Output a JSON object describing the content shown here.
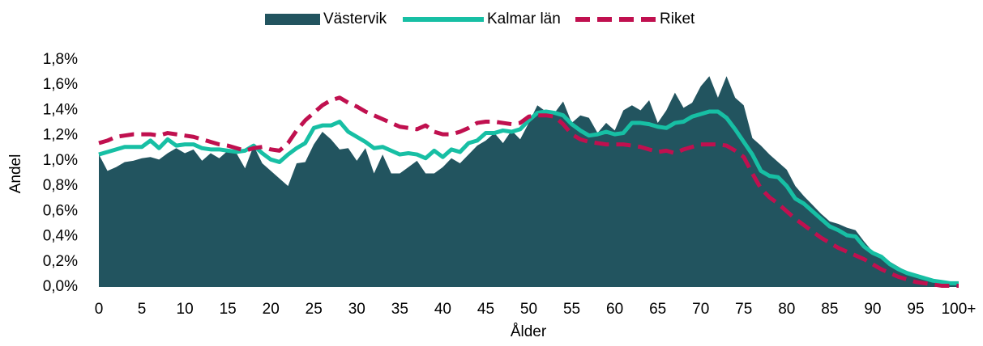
{
  "chart_data": {
    "type": "area",
    "x_label": "Ålder",
    "y_label": "Andel",
    "categories": [
      "0",
      null,
      null,
      null,
      null,
      "5",
      null,
      null,
      null,
      null,
      "10",
      null,
      null,
      null,
      null,
      "15",
      null,
      null,
      null,
      null,
      "20",
      null,
      null,
      null,
      null,
      "25",
      null,
      null,
      null,
      null,
      "30",
      null,
      null,
      null,
      null,
      "35",
      null,
      null,
      null,
      null,
      "40",
      null,
      null,
      null,
      null,
      "45",
      null,
      null,
      null,
      null,
      "50",
      null,
      null,
      null,
      null,
      "55",
      null,
      null,
      null,
      null,
      "60",
      null,
      null,
      null,
      null,
      "65",
      null,
      null,
      null,
      null,
      "70",
      null,
      null,
      null,
      null,
      "75",
      null,
      null,
      null,
      null,
      "80",
      null,
      null,
      null,
      null,
      "85",
      null,
      null,
      null,
      null,
      "90",
      null,
      null,
      null,
      null,
      "95",
      null,
      null,
      null,
      null,
      "100+"
    ],
    "ylim": [
      0,
      1.8
    ],
    "yticks": [
      {
        "value": 0,
        "label": "0,0%"
      },
      {
        "value": 0.2,
        "label": "0,2%"
      },
      {
        "value": 0.4,
        "label": "0,4%"
      },
      {
        "value": 0.6,
        "label": "0,6%"
      },
      {
        "value": 0.8,
        "label": "0,8%"
      },
      {
        "value": 1.0,
        "label": "1,0%"
      },
      {
        "value": 1.2,
        "label": "1,2%"
      },
      {
        "value": 1.4,
        "label": "1,4%"
      },
      {
        "value": 1.6,
        "label": "1,6%"
      },
      {
        "value": 1.8,
        "label": "1,8%"
      }
    ],
    "grid": false,
    "legend": "top",
    "series": [
      {
        "name": "Västervik",
        "style": "area",
        "color": "#22545f",
        "values": [
          1.05,
          0.92,
          0.95,
          0.99,
          1.0,
          1.02,
          1.03,
          1.01,
          1.06,
          1.1,
          1.06,
          1.09,
          1.0,
          1.06,
          1.02,
          1.08,
          1.06,
          0.94,
          1.12,
          0.98,
          0.92,
          0.86,
          0.8,
          0.98,
          0.99,
          1.13,
          1.23,
          1.17,
          1.09,
          1.1,
          1.0,
          1.1,
          0.9,
          1.05,
          0.9,
          0.9,
          0.95,
          1.0,
          0.9,
          0.9,
          0.95,
          1.02,
          0.98,
          1.05,
          1.12,
          1.16,
          1.22,
          1.14,
          1.24,
          1.17,
          1.3,
          1.44,
          1.39,
          1.38,
          1.47,
          1.3,
          1.36,
          1.34,
          1.22,
          1.3,
          1.24,
          1.4,
          1.44,
          1.4,
          1.48,
          1.3,
          1.4,
          1.54,
          1.42,
          1.46,
          1.59,
          1.67,
          1.5,
          1.67,
          1.5,
          1.44,
          1.18,
          1.12,
          1.05,
          0.99,
          0.93,
          0.8,
          0.72,
          0.65,
          0.58,
          0.52,
          0.5,
          0.47,
          0.45,
          0.36,
          0.28,
          0.25,
          0.2,
          0.16,
          0.12,
          0.09,
          0.06,
          0.04,
          0.03,
          0.02,
          0.02
        ]
      },
      {
        "name": "Kalmar län",
        "style": "line",
        "color": "#17bfa4",
        "values": [
          1.05,
          1.07,
          1.09,
          1.11,
          1.11,
          1.11,
          1.16,
          1.1,
          1.17,
          1.12,
          1.13,
          1.13,
          1.1,
          1.09,
          1.09,
          1.08,
          1.07,
          1.08,
          1.12,
          1.06,
          1.01,
          0.99,
          1.05,
          1.1,
          1.14,
          1.26,
          1.28,
          1.28,
          1.31,
          1.23,
          1.19,
          1.15,
          1.1,
          1.11,
          1.08,
          1.05,
          1.06,
          1.05,
          1.02,
          1.08,
          1.03,
          1.09,
          1.07,
          1.14,
          1.16,
          1.22,
          1.22,
          1.24,
          1.23,
          1.25,
          1.32,
          1.38,
          1.39,
          1.38,
          1.36,
          1.29,
          1.24,
          1.2,
          1.21,
          1.23,
          1.21,
          1.22,
          1.3,
          1.3,
          1.29,
          1.27,
          1.26,
          1.3,
          1.31,
          1.35,
          1.37,
          1.39,
          1.39,
          1.34,
          1.25,
          1.15,
          1.05,
          0.92,
          0.88,
          0.87,
          0.8,
          0.7,
          0.66,
          0.6,
          0.54,
          0.48,
          0.45,
          0.41,
          0.4,
          0.32,
          0.27,
          0.24,
          0.18,
          0.14,
          0.11,
          0.09,
          0.07,
          0.05,
          0.04,
          0.03,
          0.03
        ]
      },
      {
        "name": "Riket",
        "style": "dashed",
        "color": "#c0104f",
        "values": [
          1.14,
          1.16,
          1.19,
          1.2,
          1.21,
          1.21,
          1.21,
          1.2,
          1.22,
          1.21,
          1.2,
          1.19,
          1.17,
          1.15,
          1.13,
          1.12,
          1.1,
          1.08,
          1.1,
          1.11,
          1.09,
          1.08,
          1.14,
          1.24,
          1.32,
          1.38,
          1.44,
          1.48,
          1.5,
          1.46,
          1.43,
          1.39,
          1.36,
          1.33,
          1.3,
          1.27,
          1.26,
          1.25,
          1.28,
          1.23,
          1.21,
          1.21,
          1.23,
          1.26,
          1.3,
          1.31,
          1.31,
          1.3,
          1.29,
          1.3,
          1.35,
          1.36,
          1.36,
          1.35,
          1.29,
          1.21,
          1.17,
          1.15,
          1.14,
          1.13,
          1.13,
          1.13,
          1.12,
          1.11,
          1.09,
          1.07,
          1.08,
          1.06,
          1.09,
          1.11,
          1.13,
          1.13,
          1.13,
          1.12,
          1.08,
          1.03,
          0.9,
          0.78,
          0.71,
          0.66,
          0.6,
          0.54,
          0.49,
          0.44,
          0.39,
          0.35,
          0.31,
          0.28,
          0.25,
          0.22,
          0.18,
          0.14,
          0.11,
          0.08,
          0.06,
          0.04,
          0.03,
          0.02,
          0.01,
          0.01,
          0.01
        ]
      }
    ]
  }
}
